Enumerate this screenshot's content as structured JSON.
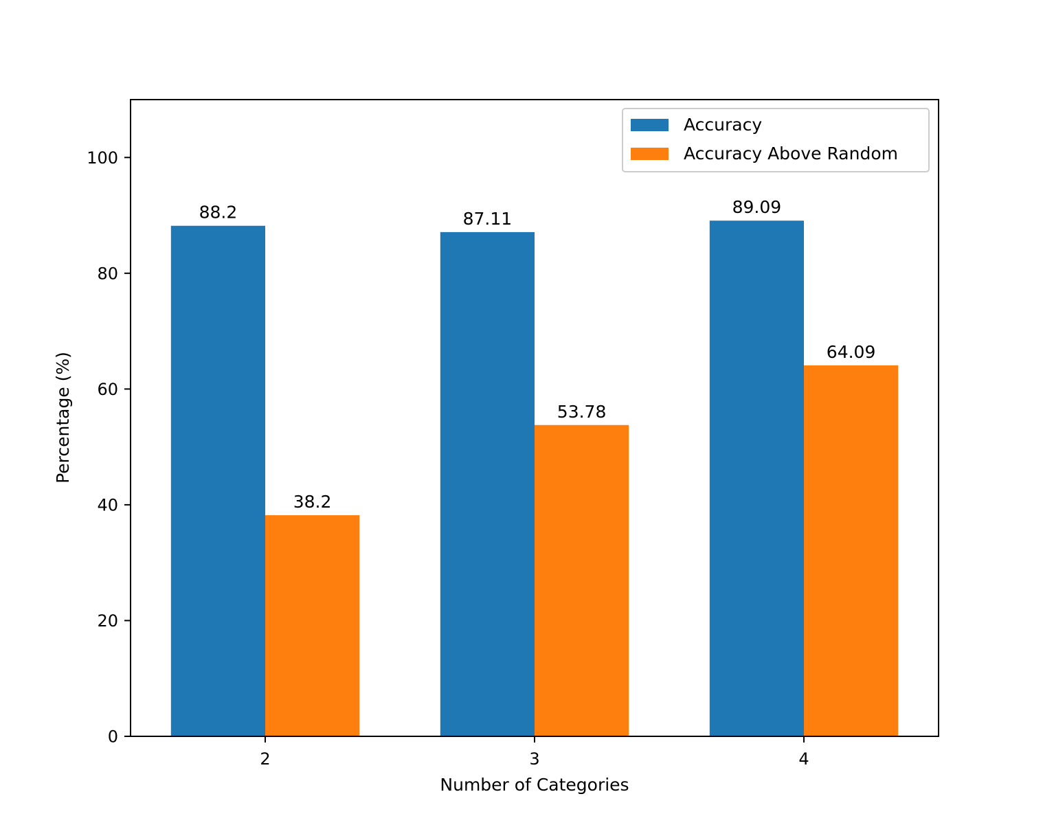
{
  "chart_data": {
    "type": "bar",
    "title": "",
    "xlabel": "Number of Categories",
    "ylabel": "Percentage (%)",
    "categories": [
      "2",
      "3",
      "4"
    ],
    "series": [
      {
        "name": "Accuracy",
        "color": "#1f77b4",
        "values": [
          88.2,
          87.11,
          89.09
        ]
      },
      {
        "name": "Accuracy Above Random",
        "color": "#ff7f0e",
        "values": [
          38.2,
          53.78,
          64.09
        ]
      }
    ],
    "data_labels": [
      [
        "88.2",
        "87.11",
        "89.09"
      ],
      [
        "38.2",
        "53.78",
        "64.09"
      ]
    ],
    "ylim": [
      0,
      110
    ],
    "yticks": [
      0,
      20,
      40,
      60,
      80,
      100
    ],
    "grid": false,
    "legend_position": "top-right"
  }
}
